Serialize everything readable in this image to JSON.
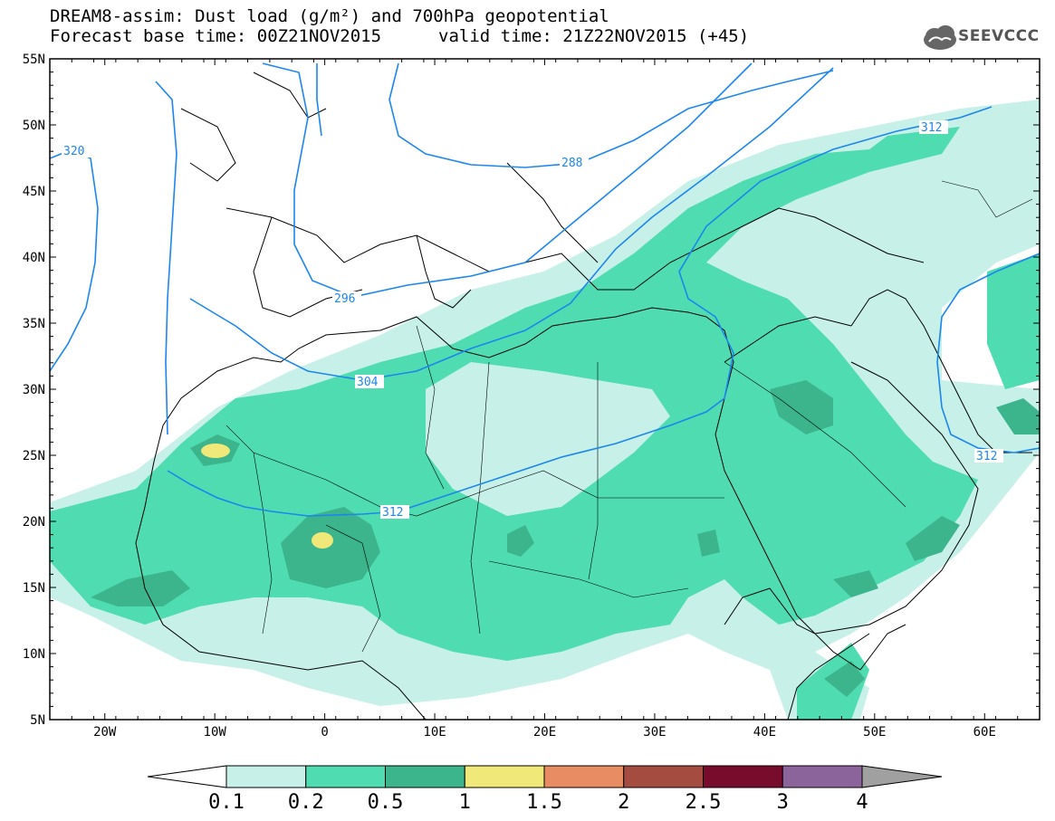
{
  "header": {
    "title_line1": "DREAM8-assim: Dust load (g/m²) and 700hPa geopotential",
    "forecast_base": "Forecast base time: 00Z21NOV2015",
    "valid_time": "valid time: 21Z22NOV2015 (+45)",
    "logo_text": "SEEVCCC"
  },
  "map": {
    "lat_labels": [
      "55N",
      "50N",
      "45N",
      "40N",
      "35N",
      "30N",
      "25N",
      "20N",
      "15N",
      "10N",
      "5N"
    ],
    "lon_labels": [
      "20W",
      "10W",
      "0",
      "10E",
      "20E",
      "30E",
      "40E",
      "50E",
      "60E"
    ],
    "extent": {
      "lon": [
        -25,
        65
      ],
      "lat": [
        5,
        55
      ]
    },
    "contour_labels": [
      "320",
      "296",
      "304",
      "312",
      "288",
      "312",
      "312"
    ]
  },
  "colorbar": {
    "levels": [
      "0.1",
      "0.2",
      "0.5",
      "1",
      "1.5",
      "2",
      "2.5",
      "3",
      "4"
    ],
    "colors": [
      "#c6f0e8",
      "#4fdcb0",
      "#3cb48c",
      "#f0e878",
      "#e88c64",
      "#a44c40",
      "#780c2c",
      "#8c649c",
      "#a0a0a0"
    ],
    "under_color": "#ffffff"
  },
  "colors": {
    "contour": "#1c86ee",
    "dust_light": "#c6f0e8",
    "dust_mid": "#4fdcb0",
    "dust_dark": "#3cb48c",
    "dust_yellow": "#f0e878",
    "coast": "#000000"
  }
}
